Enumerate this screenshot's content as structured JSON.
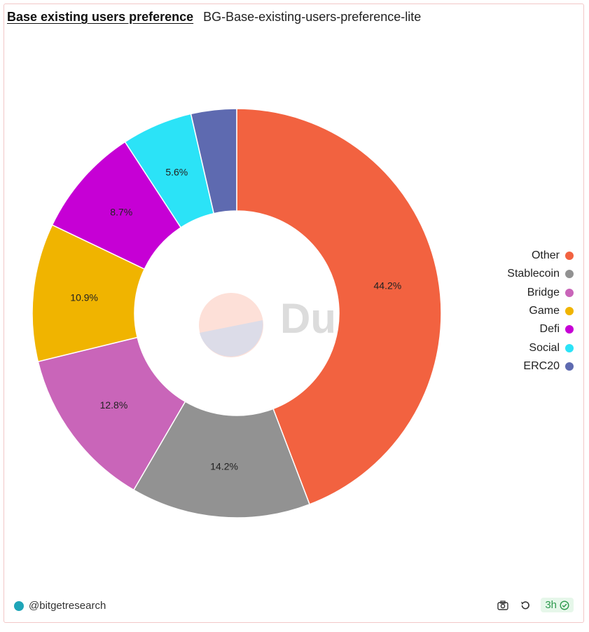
{
  "header": {
    "title": "Base existing users preference",
    "subtitle": "BG-Base-existing-users-preference-lite"
  },
  "chart_data": {
    "type": "pie",
    "style": "donut",
    "categories": [
      "Other",
      "Stablecoin",
      "Bridge",
      "Game",
      "Defi",
      "Social",
      "ERC20"
    ],
    "values": [
      44.2,
      14.2,
      12.8,
      10.9,
      8.7,
      5.6,
      3.6
    ],
    "labels": [
      "44.2%",
      "14.2%",
      "12.8%",
      "10.9%",
      "8.7%",
      "5.6%",
      ""
    ],
    "colors": [
      "#f26240",
      "#929292",
      "#c965b9",
      "#f0b400",
      "#c600d5",
      "#2be3f7",
      "#5e6ab0"
    ],
    "legend_position": "right"
  },
  "watermark": {
    "text": "Dune"
  },
  "footer": {
    "author": "@bitgetresearch",
    "refresh_badge": "3h",
    "icons": [
      "camera-icon",
      "refresh-icon",
      "check-circle-icon"
    ]
  }
}
